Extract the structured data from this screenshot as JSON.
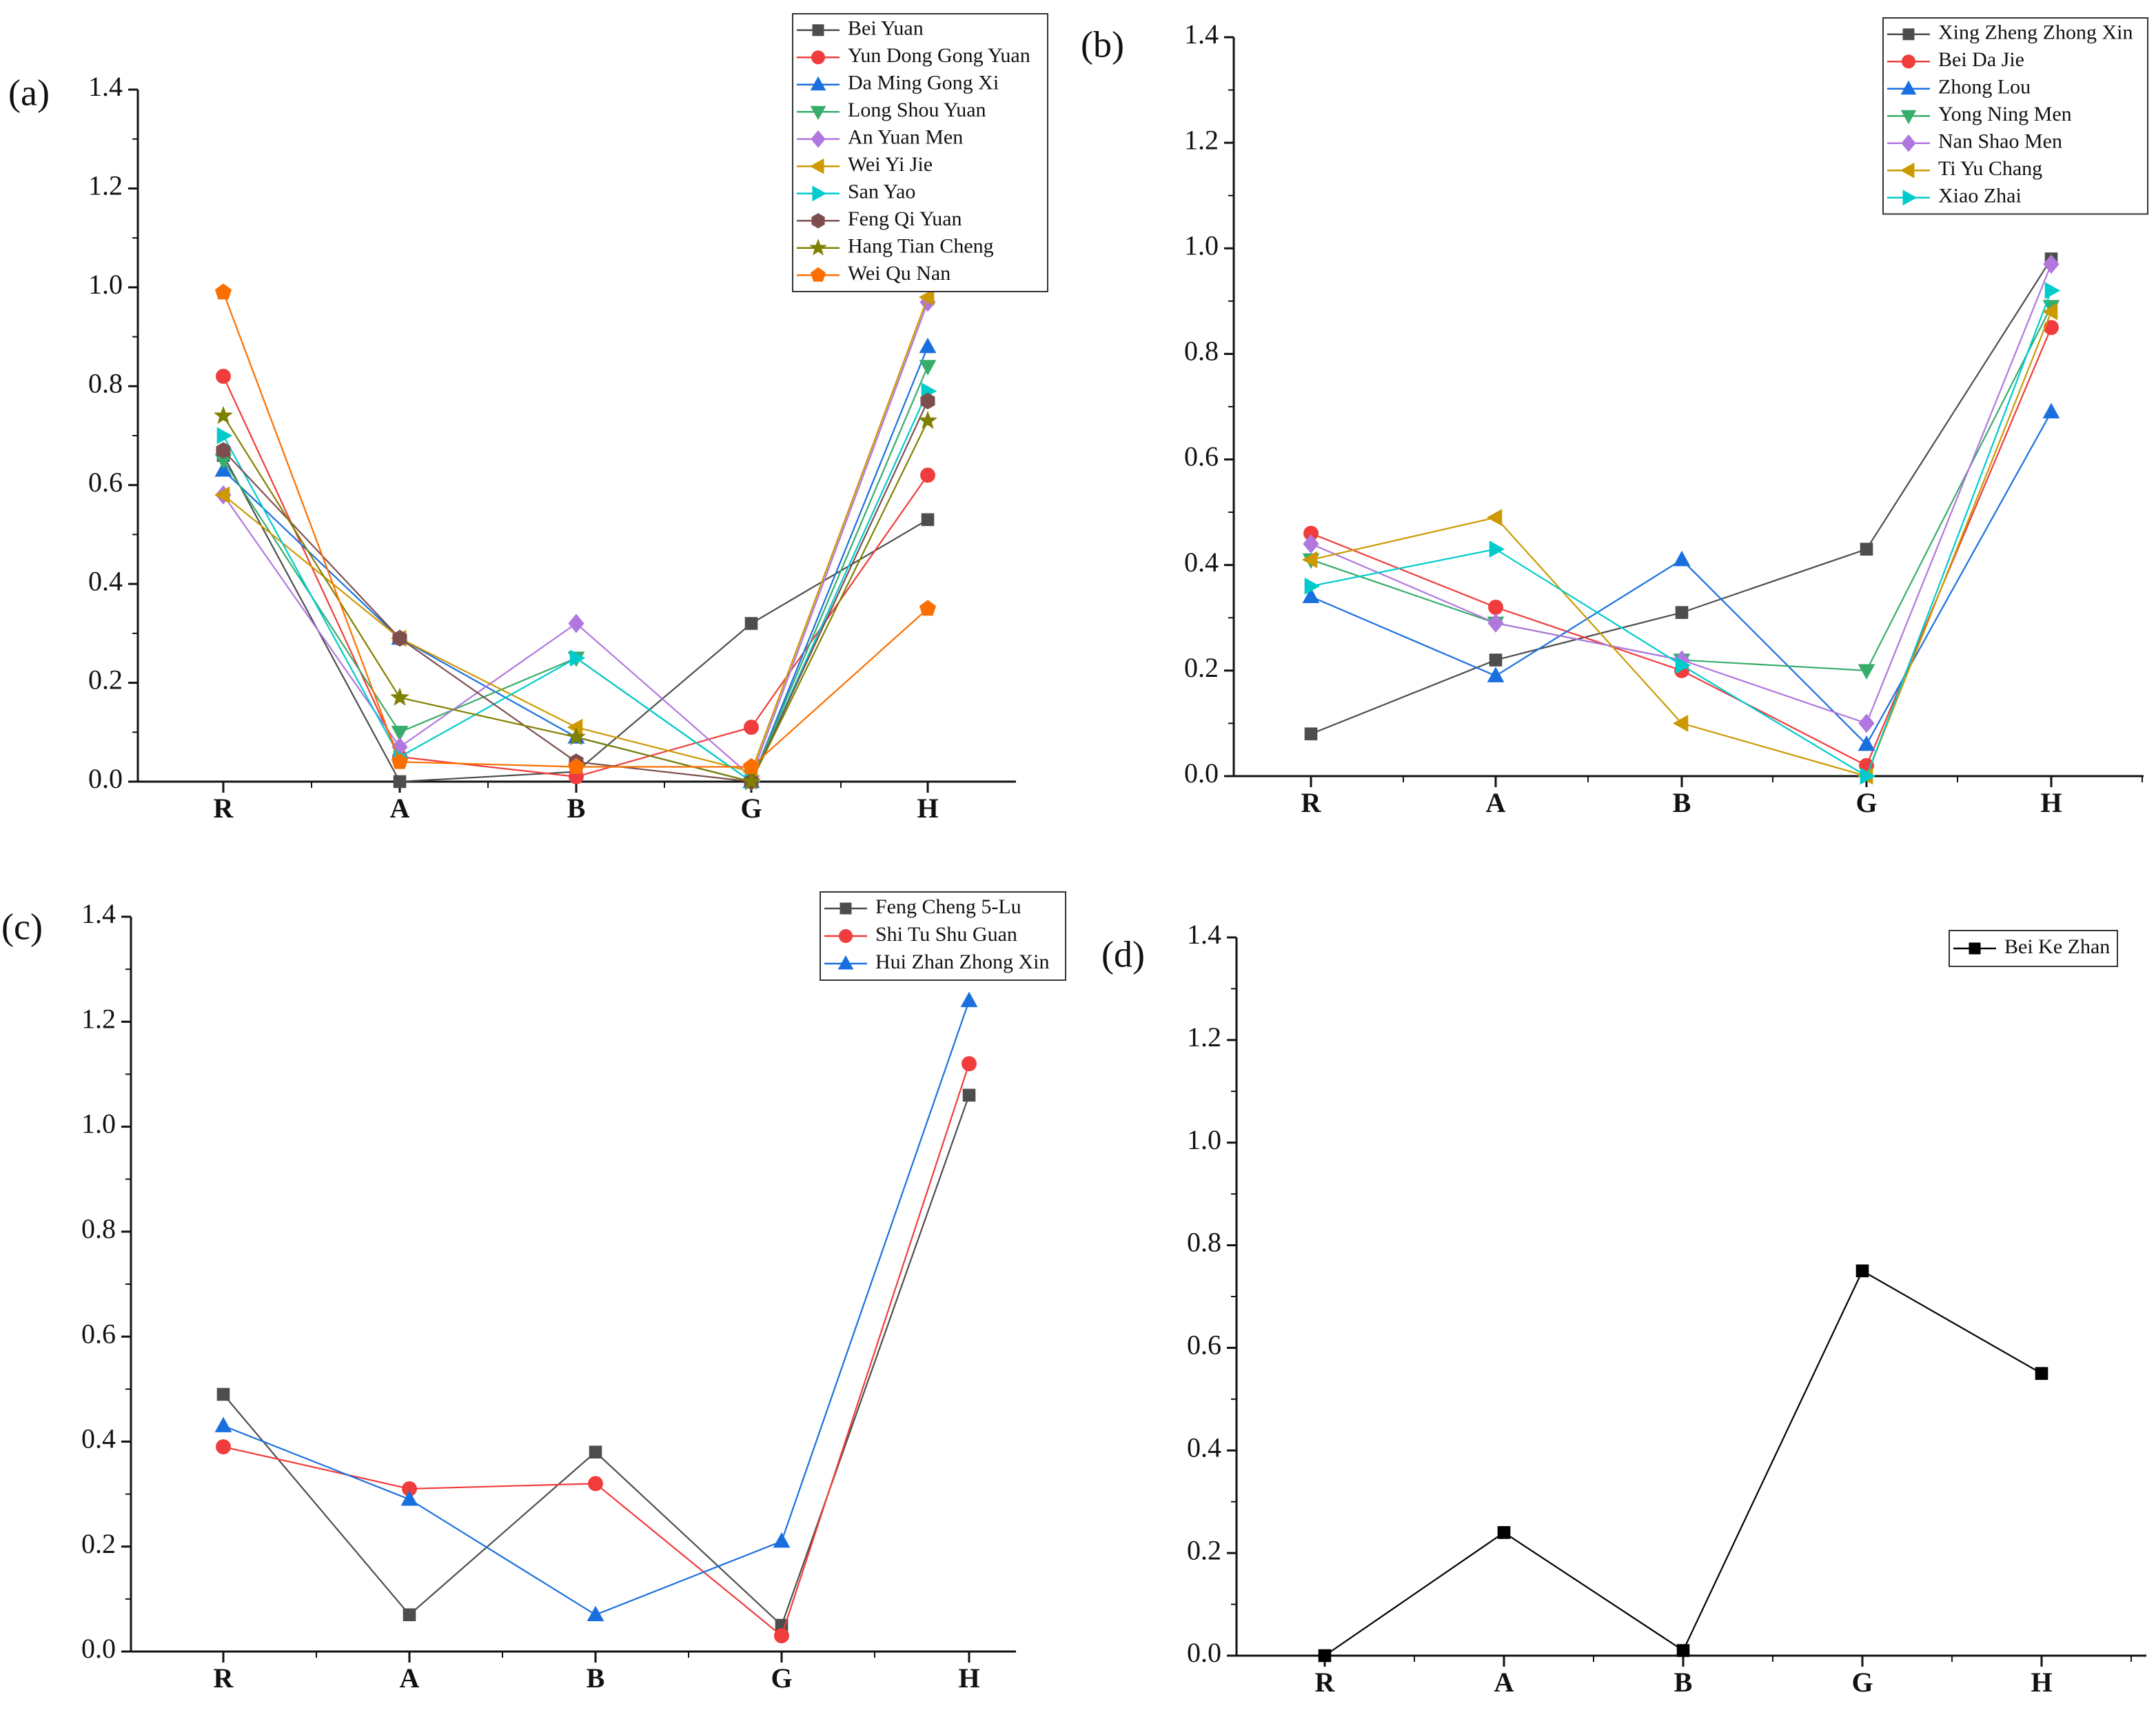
{
  "chart_data": [
    {
      "type": "line",
      "panel_label": "(a)",
      "categories": [
        "R",
        "A",
        "B",
        "G",
        "H"
      ],
      "ylim": [
        0,
        1.4
      ],
      "yticks": [
        "0.0",
        "0.2",
        "0.4",
        "0.6",
        "0.8",
        "1.0",
        "1.2",
        "1.4"
      ],
      "legend_position": "top-right",
      "series": [
        {
          "name": "Bei Yuan",
          "marker": "square",
          "color": "#4d4d4d",
          "values": [
            0.66,
            0.0,
            0.02,
            0.32,
            0.53
          ]
        },
        {
          "name": "Yun Dong Gong Yuan",
          "marker": "circle",
          "color": "#f03c3c",
          "values": [
            0.82,
            0.05,
            0.01,
            0.11,
            0.62
          ]
        },
        {
          "name": "Da Ming Gong Xi",
          "marker": "triangle-up",
          "color": "#1a6fdf",
          "values": [
            0.63,
            0.29,
            0.09,
            0.0,
            0.88
          ]
        },
        {
          "name": "Long Shou Yuan",
          "marker": "triangle-down",
          "color": "#37ad6b",
          "values": [
            0.65,
            0.1,
            0.25,
            0.0,
            0.84
          ]
        },
        {
          "name": "An Yuan Men",
          "marker": "diamond",
          "color": "#b177de",
          "values": [
            0.58,
            0.07,
            0.32,
            0.01,
            0.97
          ]
        },
        {
          "name": "Wei Yi Jie",
          "marker": "triangle-left",
          "color": "#cc9900",
          "values": [
            0.58,
            0.29,
            0.11,
            0.02,
            0.98
          ]
        },
        {
          "name": "San Yao",
          "marker": "triangle-right",
          "color": "#00cbcc",
          "values": [
            0.7,
            0.05,
            0.25,
            0.0,
            0.79
          ]
        },
        {
          "name": "Feng Qi Yuan",
          "marker": "hexagon",
          "color": "#7d4e4e",
          "values": [
            0.67,
            0.29,
            0.04,
            0.0,
            0.77
          ]
        },
        {
          "name": "Hang Tian Cheng",
          "marker": "star",
          "color": "#808000",
          "values": [
            0.74,
            0.17,
            0.09,
            0.0,
            0.73
          ]
        },
        {
          "name": "Wei Qu Nan",
          "marker": "pentagon",
          "color": "#fb6f00",
          "values": [
            0.99,
            0.04,
            0.03,
            0.03,
            0.35
          ]
        }
      ]
    },
    {
      "type": "line",
      "panel_label": "(b)",
      "categories": [
        "R",
        "A",
        "B",
        "G",
        "H"
      ],
      "ylim": [
        0,
        1.4
      ],
      "yticks": [
        "0.0",
        "0.2",
        "0.4",
        "0.6",
        "0.8",
        "1.0",
        "1.2",
        "1.4"
      ],
      "legend_position": "top-right",
      "series": [
        {
          "name": "Xing Zheng Zhong Xin",
          "marker": "square",
          "color": "#4d4d4d",
          "values": [
            0.08,
            0.22,
            0.31,
            0.43,
            0.98
          ]
        },
        {
          "name": "Bei Da Jie",
          "marker": "circle",
          "color": "#f03c3c",
          "values": [
            0.46,
            0.32,
            0.2,
            0.02,
            0.85
          ]
        },
        {
          "name": "Zhong Lou",
          "marker": "triangle-up",
          "color": "#1a6fdf",
          "values": [
            0.34,
            0.19,
            0.41,
            0.06,
            0.69
          ]
        },
        {
          "name": "Yong Ning Men",
          "marker": "triangle-down",
          "color": "#37ad6b",
          "values": [
            0.41,
            0.29,
            0.22,
            0.2,
            0.89
          ]
        },
        {
          "name": "Nan Shao Men",
          "marker": "diamond",
          "color": "#b177de",
          "values": [
            0.44,
            0.29,
            0.22,
            0.1,
            0.97
          ]
        },
        {
          "name": "Ti Yu Chang",
          "marker": "triangle-left",
          "color": "#cc9900",
          "values": [
            0.41,
            0.49,
            0.1,
            0.0,
            0.88
          ]
        },
        {
          "name": "Xiao Zhai",
          "marker": "triangle-right",
          "color": "#00cbcc",
          "values": [
            0.36,
            0.43,
            0.21,
            0.0,
            0.92
          ]
        }
      ]
    },
    {
      "type": "line",
      "panel_label": "(c)",
      "categories": [
        "R",
        "A",
        "B",
        "G",
        "H"
      ],
      "ylim": [
        0,
        1.4
      ],
      "yticks": [
        "0.0",
        "0.2",
        "0.4",
        "0.6",
        "0.8",
        "1.0",
        "1.2",
        "1.4"
      ],
      "legend_position": "top-right",
      "series": [
        {
          "name": "Feng Cheng 5-Lu",
          "marker": "square",
          "color": "#4d4d4d",
          "values": [
            0.49,
            0.07,
            0.38,
            0.05,
            1.06
          ]
        },
        {
          "name": "Shi Tu Shu Guan",
          "marker": "circle",
          "color": "#f03c3c",
          "values": [
            0.39,
            0.31,
            0.32,
            0.03,
            1.12
          ]
        },
        {
          "name": "Hui Zhan Zhong Xin",
          "marker": "triangle-up",
          "color": "#1a6fdf",
          "values": [
            0.43,
            0.29,
            0.07,
            0.21,
            1.24
          ]
        }
      ]
    },
    {
      "type": "line",
      "panel_label": "(d)",
      "categories": [
        "R",
        "A",
        "B",
        "G",
        "H"
      ],
      "ylim": [
        0,
        1.4
      ],
      "yticks": [
        "0.0",
        "0.2",
        "0.4",
        "0.6",
        "0.8",
        "1.0",
        "1.2",
        "1.4"
      ],
      "legend_position": "top-right",
      "series": [
        {
          "name": "Bei Ke Zhan",
          "marker": "square",
          "color": "#000000",
          "values": [
            0.0,
            0.24,
            0.01,
            0.75,
            0.55
          ]
        }
      ]
    }
  ]
}
